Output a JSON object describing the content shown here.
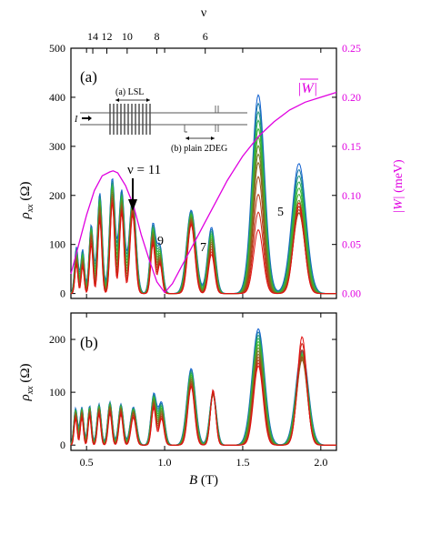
{
  "figure": {
    "panel_a_label": "(a)",
    "panel_b_label": "(b)",
    "top_axis_symbol": "ν",
    "top_axis_ticks": [
      "14",
      "12",
      "10",
      "8",
      "6"
    ],
    "x_axis_label_var": "B",
    "x_axis_label_unit": " (T)",
    "y_axis_a_label": "ρ",
    "y_axis_a_sub": "xx",
    "y_axis_a_unit": " (Ω)",
    "y_axis_b_label": "ρ",
    "y_axis_b_sub": "xx",
    "y_axis_b_unit": " (Ω)",
    "right_axis_label_symbol": "|W|",
    "right_axis_label_unit": " (meV)",
    "right_axis_curve_label": "|W|",
    "annotation_nu11": "ν = 11",
    "annotation_9": "9",
    "annotation_7": "7",
    "annotation_5": "5",
    "inset_lsl": "(a) LSL",
    "inset_plain": "(b) plain 2DEG",
    "inset_current": "I",
    "colors": {
      "magenta": "#e000e0",
      "red": "#e01010",
      "green": "#30c030",
      "blue": "#1060d0"
    }
  },
  "chart_data": [
    {
      "panel": "(a)",
      "type": "line",
      "xlabel": "B (T)",
      "ylabel": "ρxx (Ω)",
      "y2label": "|W| (meV)",
      "xlim": [
        0.4,
        2.1
      ],
      "ylim": [
        -10,
        500
      ],
      "y2lim": [
        -0.005,
        0.25
      ],
      "x_ticks": [
        "0.5",
        "1.0",
        "1.5",
        "2.0"
      ],
      "y_ticks": [
        "0",
        "100",
        "200",
        "300",
        "400",
        "500"
      ],
      "y2_ticks": [
        "0.00",
        "0.05",
        "0.10",
        "0.15",
        "0.20",
        "0.25"
      ],
      "top_ticks": [
        {
          "label": "14",
          "x": 0.54
        },
        {
          "label": "12",
          "x": 0.63
        },
        {
          "label": "10",
          "x": 0.76
        },
        {
          "label": "8",
          "x": 0.95
        },
        {
          "label": "6",
          "x": 1.26
        }
      ],
      "peaks": [
        {
          "x": 0.435,
          "red": 95,
          "green": 70,
          "blue": 60,
          "w": 0.012
        },
        {
          "x": 0.475,
          "red": 90,
          "green": 65,
          "blue": 55,
          "w": 0.012
        },
        {
          "x": 0.53,
          "red": 140,
          "green": 120,
          "blue": 100,
          "w": 0.014
        },
        {
          "x": 0.585,
          "red": 205,
          "green": 170,
          "blue": 150,
          "w": 0.016
        },
        {
          "x": 0.665,
          "red": 235,
          "green": 200,
          "blue": 185,
          "w": 0.018
        },
        {
          "x": 0.725,
          "red": 210,
          "green": 180,
          "blue": 165,
          "w": 0.018
        },
        {
          "x": 0.795,
          "red": 195,
          "green": 175,
          "blue": 160,
          "w": 0.022
        },
        {
          "x": 0.925,
          "red": 140,
          "green": 115,
          "blue": 100,
          "w": 0.018
        },
        {
          "x": 0.97,
          "red": 95,
          "green": 70,
          "blue": 60,
          "w": 0.018
        },
        {
          "x": 1.17,
          "red": 170,
          "green": 150,
          "blue": 140,
          "w": 0.03
        },
        {
          "x": 1.3,
          "red": 135,
          "green": 100,
          "blue": 80,
          "w": 0.025
        },
        {
          "x": 1.6,
          "red": 405,
          "green": 260,
          "blue": 130,
          "w": 0.04
        },
        {
          "x": 1.86,
          "red": 265,
          "green": 160,
          "blue": 185,
          "w": 0.045
        }
      ],
      "series": [
        {
          "name": "|W|",
          "axis": "right",
          "x": [
            0.4,
            0.45,
            0.5,
            0.55,
            0.6,
            0.65,
            0.67,
            0.7,
            0.75,
            0.8,
            0.85,
            0.9,
            0.95,
            1.0,
            1.05,
            1.1,
            1.15,
            1.2,
            1.25,
            1.3,
            1.35,
            1.4,
            1.5,
            1.6,
            1.7,
            1.8,
            1.9,
            2.0,
            2.1
          ],
          "y": [
            0.02,
            0.05,
            0.08,
            0.105,
            0.12,
            0.124,
            0.125,
            0.123,
            0.11,
            0.09,
            0.06,
            0.035,
            0.012,
            0.001,
            0.01,
            0.025,
            0.04,
            0.055,
            0.07,
            0.085,
            0.1,
            0.115,
            0.14,
            0.16,
            0.175,
            0.187,
            0.195,
            0.2,
            0.205
          ]
        }
      ]
    },
    {
      "panel": "(b)",
      "type": "line",
      "xlabel": "B (T)",
      "ylabel": "ρxx (Ω)",
      "xlim": [
        0.4,
        2.1
      ],
      "ylim": [
        -10,
        250
      ],
      "x_ticks": [
        "0.5",
        "1.0",
        "1.5",
        "2.0"
      ],
      "y_ticks": [
        "0",
        "100",
        "200"
      ],
      "peaks": [
        {
          "x": 0.43,
          "red": 70,
          "green": 60,
          "blue": 50,
          "w": 0.012
        },
        {
          "x": 0.47,
          "red": 72,
          "green": 62,
          "blue": 52,
          "w": 0.012
        },
        {
          "x": 0.52,
          "red": 75,
          "green": 65,
          "blue": 55,
          "w": 0.012
        },
        {
          "x": 0.58,
          "red": 78,
          "green": 68,
          "blue": 58,
          "w": 0.014
        },
        {
          "x": 0.65,
          "red": 82,
          "green": 72,
          "blue": 60,
          "w": 0.015
        },
        {
          "x": 0.72,
          "red": 78,
          "green": 68,
          "blue": 58,
          "w": 0.016
        },
        {
          "x": 0.8,
          "red": 72,
          "green": 62,
          "blue": 52,
          "w": 0.02
        },
        {
          "x": 0.93,
          "red": 95,
          "green": 80,
          "blue": 70,
          "w": 0.018
        },
        {
          "x": 0.98,
          "red": 80,
          "green": 60,
          "blue": 50,
          "w": 0.02
        },
        {
          "x": 1.17,
          "red": 145,
          "green": 120,
          "blue": 110,
          "w": 0.028
        },
        {
          "x": 1.31,
          "red": 100,
          "green": 95,
          "blue": 105,
          "w": 0.022
        },
        {
          "x": 1.6,
          "red": 220,
          "green": 170,
          "blue": 150,
          "w": 0.04
        },
        {
          "x": 1.88,
          "red": 180,
          "green": 160,
          "blue": 205,
          "w": 0.04
        }
      ]
    }
  ]
}
